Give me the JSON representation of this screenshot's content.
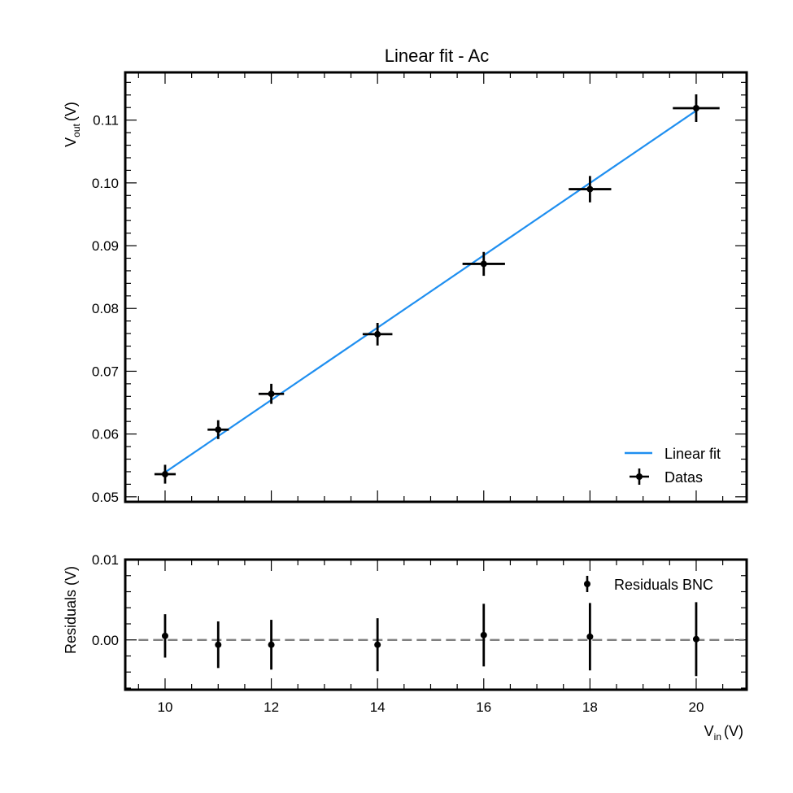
{
  "chart_data": [
    {
      "type": "scatter",
      "title": "Linear fit - Ac",
      "ylabel": {
        "main": "V",
        "sub": "out",
        "unit": "(V)"
      },
      "xlim": [
        9.25,
        20.95
      ],
      "ylim": [
        0.0492,
        0.1176
      ],
      "y_ticks": [
        0.05,
        0.06,
        0.07,
        0.08,
        0.09,
        0.1,
        0.11
      ],
      "y_tick_labels": [
        "0.05",
        "0.06",
        "0.07",
        "0.08",
        "0.09",
        "0.10",
        "0.11"
      ],
      "x_ticks": [
        10,
        12,
        14,
        16,
        18,
        20
      ],
      "series": [
        {
          "name": "Datas",
          "x": [
            10,
            11,
            12,
            14,
            16,
            18,
            20
          ],
          "y": [
            0.0536,
            0.0607,
            0.0664,
            0.0759,
            0.0871,
            0.099,
            0.1119
          ],
          "xerr": [
            0.2,
            0.2,
            0.24,
            0.28,
            0.4,
            0.4,
            0.44
          ],
          "yerr": [
            0.0015,
            0.0015,
            0.0016,
            0.0018,
            0.0019,
            0.0021,
            0.0022
          ]
        }
      ],
      "fit": {
        "name": "Linear fit",
        "slope": 0.00576,
        "intercept": -0.0037,
        "x_range": [
          10,
          20
        ],
        "color": "#1f8ff0"
      },
      "legend": {
        "position": "bottom-right",
        "entries": [
          "Linear fit",
          "Datas"
        ]
      }
    },
    {
      "type": "scatter",
      "ylabel": "Residuals (V)",
      "xlabel": {
        "main": "V",
        "sub": "in",
        "unit": "(V)"
      },
      "xlim": [
        9.25,
        20.95
      ],
      "ylim": [
        -0.0062,
        0.01
      ],
      "y_ticks": [
        0.0,
        0.01
      ],
      "y_tick_labels": [
        "0.00",
        "0.01"
      ],
      "x_ticks": [
        10,
        12,
        14,
        16,
        18,
        20
      ],
      "x_tick_labels": [
        "10",
        "12",
        "14",
        "16",
        "18",
        "20"
      ],
      "series": [
        {
          "name": "Residuals BNC",
          "x": [
            10,
            11,
            12,
            14,
            16,
            18,
            20
          ],
          "y": [
            0.0005,
            -0.0006,
            -0.0006,
            -0.0006,
            0.0006,
            0.0004,
            0.0001
          ],
          "yerr": [
            0.0027,
            0.0029,
            0.0031,
            0.0033,
            0.0039,
            0.0042,
            0.0046
          ]
        }
      ],
      "reference_line": {
        "y": 0.0,
        "style": "dashed",
        "color": "#808080"
      },
      "legend": {
        "position": "top-right",
        "entries": [
          "Residuals BNC"
        ]
      }
    }
  ]
}
